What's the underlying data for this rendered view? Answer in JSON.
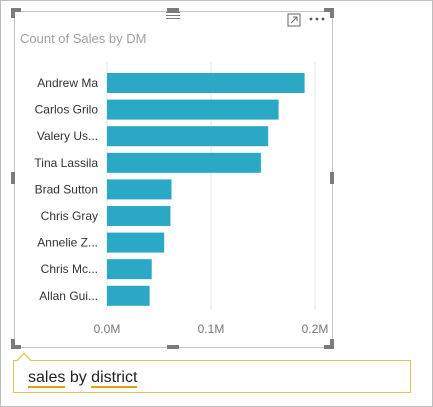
{
  "visual": {
    "title": "Count of Sales by DM",
    "focus_icon": "focus-mode-icon",
    "more_icon": "more-options-icon",
    "grip_icon": "drag-grip-icon"
  },
  "qna": {
    "word1": "sales",
    "word2": "by",
    "word3": "district"
  },
  "colors": {
    "bar": "#2aa8c5",
    "grid": "#e6e6e6",
    "label": "#333333",
    "tick": "#777777"
  },
  "chart_data": {
    "type": "bar",
    "orientation": "horizontal",
    "categories": [
      "Andrew Ma",
      "Carlos Grilo",
      "Valery Us...",
      "Tina Lassila",
      "Brad Sutton",
      "Chris Gray",
      "Annelie Z...",
      "Chris Mc...",
      "Allan Gui..."
    ],
    "values": [
      0.19,
      0.165,
      0.155,
      0.148,
      0.062,
      0.061,
      0.055,
      0.043,
      0.041
    ],
    "x_ticks": [
      "0.0M",
      "0.1M",
      "0.2M"
    ],
    "xlim": [
      0,
      0.2
    ],
    "grid": true,
    "title": "Count of Sales by DM"
  }
}
